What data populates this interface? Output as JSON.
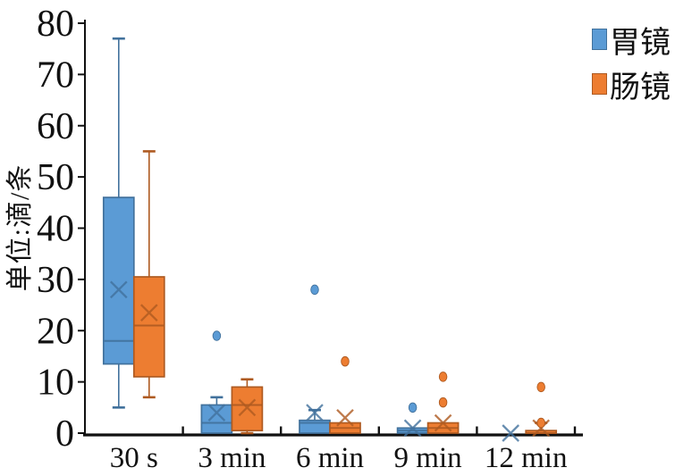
{
  "chart_data": {
    "type": "boxplot",
    "title": "",
    "ylabel": "单位:滴/条",
    "xlabel": "",
    "ylim": [
      0,
      80
    ],
    "yticks": [
      0,
      10,
      20,
      30,
      40,
      50,
      60,
      70,
      80
    ],
    "categories": [
      "30 s",
      "3 min",
      "6 min",
      "9 min",
      "12 min"
    ],
    "legend_position": "top-right",
    "grid": false,
    "axis_color": "#111111",
    "series": [
      {
        "name": "胃镜",
        "color": "#5B9BD5",
        "border": "#41719C",
        "boxes": [
          {
            "low": 5,
            "q1": 13.5,
            "median": 18,
            "q3": 46,
            "high": 77,
            "mean": 28,
            "outliers": []
          },
          {
            "low": 0,
            "q1": 0,
            "median": 2,
            "q3": 5.5,
            "high": 7,
            "mean": 4,
            "outliers": [
              19
            ]
          },
          {
            "low": 0,
            "q1": 0,
            "median": 2,
            "q3": 2.5,
            "high": 4.5,
            "mean": 4,
            "outliers": [
              28
            ]
          },
          {
            "low": 0,
            "q1": 0,
            "median": 0.5,
            "q3": 1,
            "high": 1,
            "mean": 1,
            "outliers": [
              5
            ]
          },
          {
            "low": 0,
            "q1": 0,
            "median": 0,
            "q3": 0,
            "high": 0,
            "mean": 0,
            "outliers": []
          }
        ]
      },
      {
        "name": "肠镜",
        "color": "#ED7D31",
        "border": "#AE5A21",
        "boxes": [
          {
            "low": 7,
            "q1": 11,
            "median": 21,
            "q3": 30.5,
            "high": 55,
            "mean": 23.5,
            "outliers": []
          },
          {
            "low": 0,
            "q1": 0.5,
            "median": 5.5,
            "q3": 9,
            "high": 10.5,
            "mean": 5,
            "outliers": []
          },
          {
            "low": 0,
            "q1": 0,
            "median": 1,
            "q3": 2,
            "high": 2,
            "mean": 3,
            "outliers": [
              14
            ]
          },
          {
            "low": 0,
            "q1": 0,
            "median": 1,
            "q3": 2,
            "high": 2,
            "mean": 2,
            "outliers": [
              11,
              6
            ]
          },
          {
            "low": 0,
            "q1": 0,
            "median": 0,
            "q3": 0.5,
            "high": 2,
            "mean": 1,
            "outliers": [
              2,
              9
            ]
          }
        ]
      }
    ]
  }
}
